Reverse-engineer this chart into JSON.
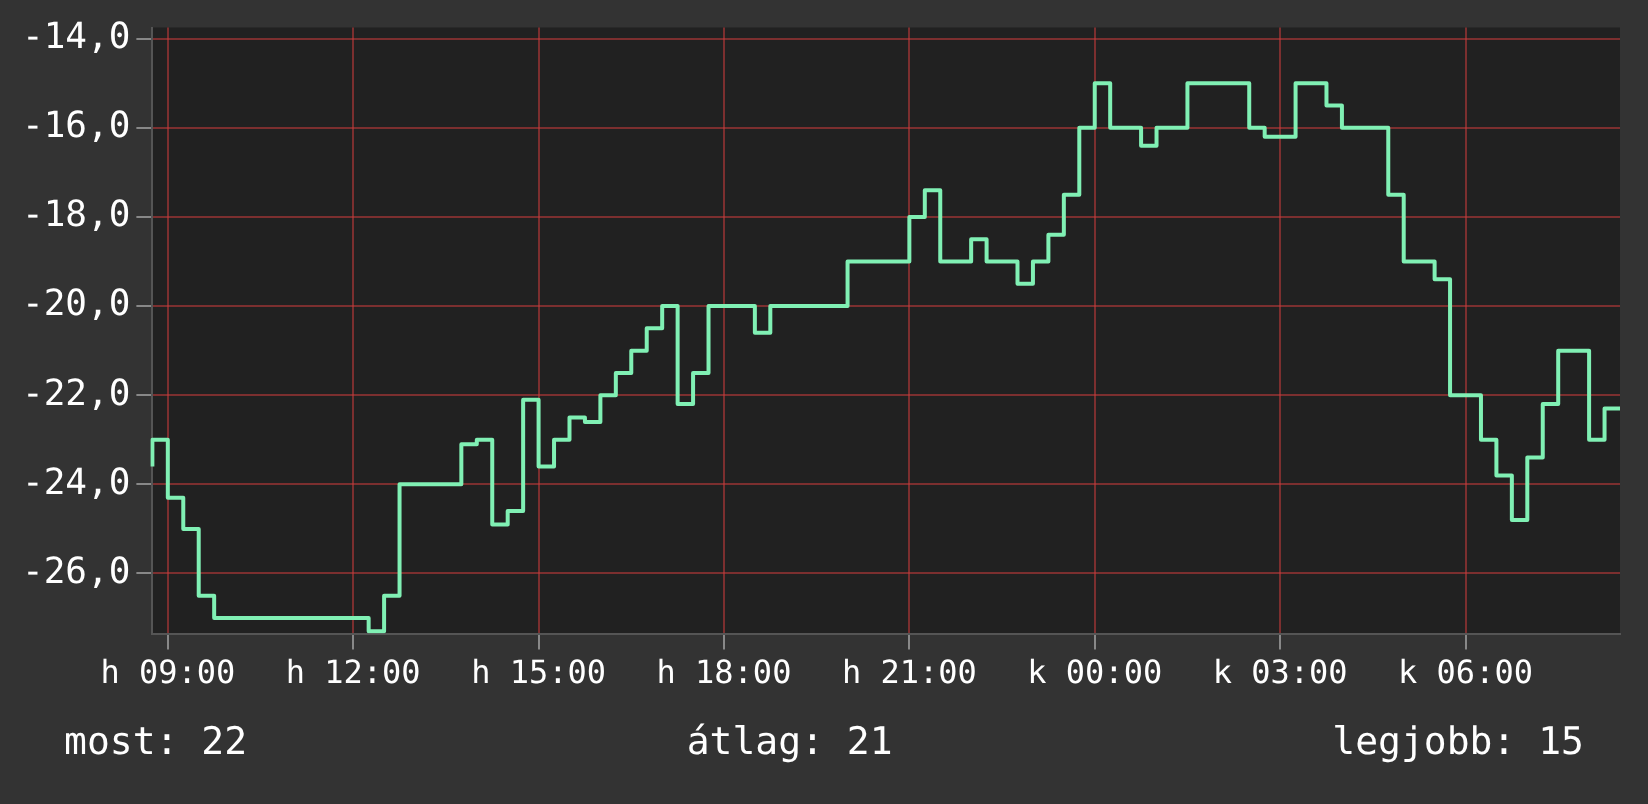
{
  "chart_data": {
    "type": "step",
    "color": "#80f0b4",
    "grid": true,
    "legend": false,
    "marker": "none",
    "line_style": "solid",
    "ylim": [
      -27.35,
      -13.75
    ],
    "yticks": [
      {
        "value": -14,
        "label": "-14,0"
      },
      {
        "value": -16,
        "label": "-16,0"
      },
      {
        "value": -18,
        "label": "-18,0"
      },
      {
        "value": -20,
        "label": "-20,0"
      },
      {
        "value": -22,
        "label": "-22,0"
      },
      {
        "value": -24,
        "label": "-24,0"
      },
      {
        "value": -26,
        "label": "-26,0"
      }
    ],
    "categories": [
      null,
      "h 09:00",
      null,
      null,
      null,
      null,
      null,
      null,
      null,
      null,
      null,
      null,
      null,
      "h 12:00",
      null,
      null,
      null,
      null,
      null,
      null,
      null,
      null,
      null,
      null,
      null,
      "h 15:00",
      null,
      null,
      null,
      null,
      null,
      null,
      null,
      null,
      null,
      null,
      null,
      "h 18:00",
      null,
      null,
      null,
      null,
      null,
      null,
      null,
      null,
      null,
      null,
      null,
      "h 21:00",
      null,
      null,
      null,
      null,
      null,
      null,
      null,
      null,
      null,
      null,
      null,
      "k 00:00",
      null,
      null,
      null,
      null,
      null,
      null,
      null,
      null,
      null,
      null,
      null,
      "k 03:00",
      null,
      null,
      null,
      null,
      null,
      null,
      null,
      null,
      null,
      null,
      null,
      "k 06:00",
      null,
      null,
      null,
      null,
      null,
      null,
      null,
      null,
      null,
      null
    ],
    "values": [
      -23.6,
      -23.0,
      -24.3,
      -25.0,
      -26.5,
      -27,
      -27,
      -27,
      -27,
      -27,
      -27,
      -27,
      -27,
      -27,
      -27,
      -27.3,
      -26.5,
      -24,
      -24,
      -24,
      -24,
      -23.1,
      -23,
      -24.9,
      -24.6,
      -22.1,
      -23.6,
      -23,
      -22.5,
      -22.6,
      -22,
      -21.5,
      -21,
      -20.5,
      -20,
      -22.2,
      -21.5,
      -20,
      -20,
      -20,
      -20.6,
      -20,
      -20,
      -20,
      -20,
      -20,
      -19,
      -19,
      -19,
      -19,
      -18,
      -17.4,
      -19,
      -19,
      -18.5,
      -19,
      -19,
      -19.5,
      -19,
      -18.4,
      -17.5,
      -16,
      -15,
      -16,
      -16,
      -16.4,
      -16,
      -16,
      -15,
      -15,
      -15,
      -15,
      -16,
      -16.2,
      -16.2,
      -15,
      -15,
      -15.5,
      -16,
      -16,
      -16,
      -17.5,
      -19,
      -19,
      -19.4,
      -22,
      -22,
      -23,
      -23.8,
      -24.8,
      -23.4,
      -22.2,
      -21,
      -21,
      -23,
      -22.3
    ],
    "annotations": [
      "most: 22",
      "átlag: 21",
      "legjobb: 15"
    ]
  }
}
